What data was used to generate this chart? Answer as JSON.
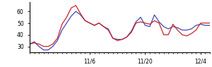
{
  "blue_line": [
    32,
    34,
    30,
    27,
    27,
    30,
    35,
    44,
    50,
    56,
    60,
    57,
    52,
    50,
    48,
    50,
    47,
    45,
    37,
    36,
    36,
    38,
    43,
    51,
    55,
    48,
    47,
    57,
    51,
    47,
    45,
    47,
    46,
    44,
    44,
    45,
    48,
    49,
    48,
    48
  ],
  "red_line": [
    32,
    33,
    32,
    30,
    30,
    32,
    37,
    49,
    55,
    63,
    65,
    58,
    52,
    50,
    48,
    50,
    47,
    44,
    37,
    35,
    36,
    38,
    42,
    50,
    51,
    50,
    49,
    52,
    50,
    40,
    40,
    49,
    44,
    40,
    39,
    41,
    44,
    50,
    50,
    50
  ],
  "blue_color": "#4444bb",
  "red_color": "#cc2222",
  "xlim": [
    0,
    39
  ],
  "ylim": [
    25,
    68
  ],
  "yticks": [
    30,
    40,
    50,
    60
  ],
  "xtick_positions": [
    13,
    25,
    37
  ],
  "xtick_labels": [
    "11/6",
    "11/20",
    "12/4"
  ],
  "linewidth": 0.9,
  "background_color": "#ffffff"
}
